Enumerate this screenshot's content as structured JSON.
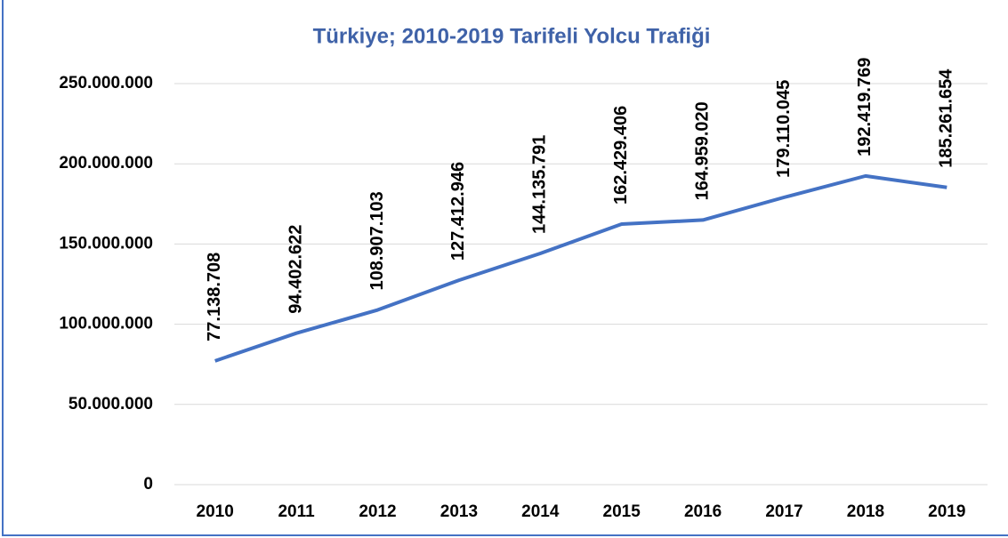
{
  "chart_data": {
    "type": "line",
    "title": "Türkiye; 2010-2019 Tarifeli Yolcu Trafiği",
    "categories": [
      "2010",
      "2011",
      "2012",
      "2013",
      "2014",
      "2015",
      "2016",
      "2017",
      "2018",
      "2019"
    ],
    "series": [
      {
        "name": "Tarifeli Yolcu Trafiği",
        "color": "#4472c4",
        "values": [
          77138708,
          94402622,
          108907103,
          127412946,
          144135791,
          162429406,
          164959020,
          179110045,
          192419769,
          185261654
        ],
        "value_labels": [
          "77.138.708",
          "94.402.622",
          "108.907.103",
          "127.412.946",
          "144.135.791",
          "162.429.406",
          "164.959.020",
          "179.110.045",
          "192.419.769",
          "185.261.654"
        ]
      }
    ],
    "ylim": [
      0,
      250000000
    ],
    "yticks": [
      0,
      {
        "value": 50000000,
        "label": "50.000.000"
      },
      {
        "value": 100000000,
        "label": "100.000.000"
      },
      {
        "value": 150000000,
        "label": "150.000.000"
      },
      {
        "value": 200000000,
        "label": "200.000.000"
      },
      {
        "value": 250000000,
        "label": "250.000.000"
      }
    ],
    "grid": true
  }
}
